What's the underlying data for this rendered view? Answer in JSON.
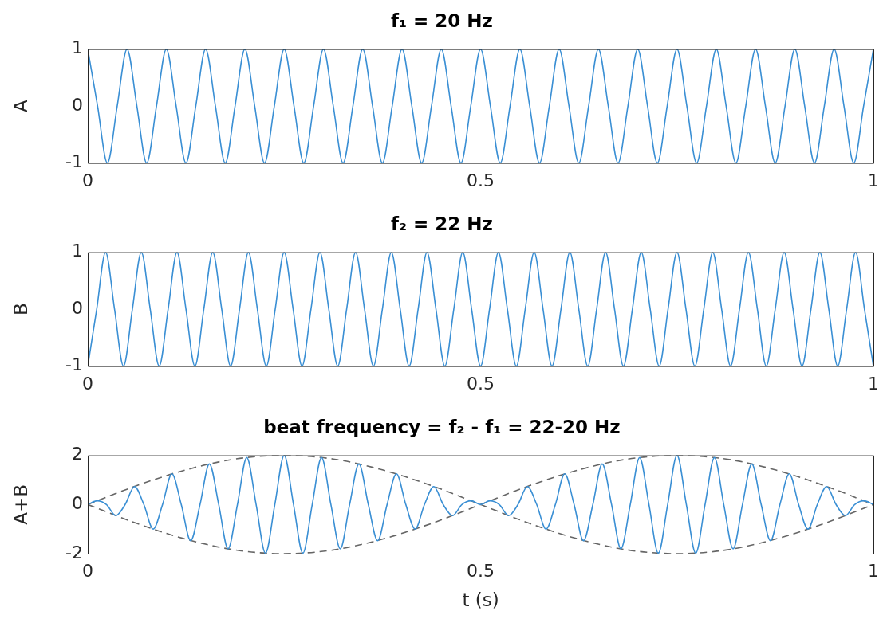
{
  "chart_data": [
    {
      "type": "line",
      "title": "f₁ = 20 Hz",
      "ylabel": "A",
      "xlim": [
        0,
        1
      ],
      "xticks": [
        0,
        0.5,
        1
      ],
      "ylim": [
        -1,
        1
      ],
      "yticks": [
        -1,
        0,
        1
      ],
      "grid": false,
      "line_style": "solid",
      "marker": "none",
      "color": "#3a8fd4",
      "x": [
        0,
        0.0125,
        0.025,
        0.0375,
        0.05,
        0.0625,
        0.075,
        0.0875,
        0.1,
        0.1125,
        0.125,
        0.1375,
        0.15,
        0.1625,
        0.175,
        0.1875,
        0.2,
        0.2125,
        0.225,
        0.2375,
        0.25,
        0.2625,
        0.275,
        0.2875,
        0.3,
        0.3125,
        0.325,
        0.3375,
        0.35,
        0.3625,
        0.375,
        0.3875,
        0.4,
        0.4125,
        0.425,
        0.4375,
        0.45,
        0.4625,
        0.475,
        0.4875,
        0.5,
        0.5125,
        0.525,
        0.5375,
        0.55,
        0.5625,
        0.575,
        0.5875,
        0.6,
        0.6125,
        0.625,
        0.6375,
        0.65,
        0.6625,
        0.675,
        0.6875,
        0.7,
        0.7125,
        0.725,
        0.7375,
        0.75,
        0.7625,
        0.775,
        0.7875,
        0.8,
        0.8125,
        0.825,
        0.8375,
        0.85,
        0.8625,
        0.875,
        0.8875,
        0.9,
        0.9125,
        0.925,
        0.9375,
        0.95,
        0.9625,
        0.975,
        0.9875,
        1
      ],
      "values": [
        1,
        0,
        -1,
        0,
        1,
        0,
        -1,
        0,
        1,
        0,
        -1,
        0,
        1,
        0,
        -1,
        0,
        1,
        0,
        -1,
        0,
        1,
        0,
        -1,
        0,
        1,
        0,
        -1,
        0,
        1,
        0,
        -1,
        0,
        1,
        0,
        -1,
        0,
        1,
        0,
        -1,
        0,
        1,
        0,
        -1,
        0,
        1,
        0,
        -1,
        0,
        1,
        0,
        -1,
        0,
        1,
        0,
        -1,
        0,
        1,
        0,
        -1,
        0,
        1,
        0,
        -1,
        0,
        1,
        0,
        -1,
        0,
        1,
        0,
        -1,
        0,
        1,
        0,
        -1,
        0,
        1,
        0,
        -1,
        0,
        1
      ]
    },
    {
      "type": "line",
      "title": "f₂ = 22 Hz",
      "ylabel": "B",
      "xlim": [
        0,
        1
      ],
      "xticks": [
        0,
        0.5,
        1
      ],
      "ylim": [
        -1,
        1
      ],
      "yticks": [
        -1,
        0,
        1
      ],
      "grid": false,
      "line_style": "solid",
      "marker": "none",
      "color": "#3a8fd4",
      "x": [
        0,
        0.0114,
        0.0227,
        0.0341,
        0.0455,
        0.0568,
        0.0682,
        0.0795,
        0.0909,
        0.1023,
        0.1136,
        0.125,
        0.1364,
        0.1477,
        0.1591,
        0.1705,
        0.1818,
        0.1932,
        0.2045,
        0.2159,
        0.2273,
        0.2386,
        0.25,
        0.2614,
        0.2727,
        0.2841,
        0.2955,
        0.3068,
        0.3182,
        0.3295,
        0.3409,
        0.3523,
        0.3636,
        0.375,
        0.3864,
        0.3977,
        0.4091,
        0.4205,
        0.4318,
        0.4432,
        0.4545,
        0.4659,
        0.4773,
        0.4886,
        0.5,
        0.5114,
        0.5227,
        0.5341,
        0.5455,
        0.5568,
        0.5682,
        0.5795,
        0.5909,
        0.6023,
        0.6136,
        0.625,
        0.6364,
        0.6477,
        0.6591,
        0.6705,
        0.6818,
        0.6932,
        0.7045,
        0.7159,
        0.7273,
        0.7386,
        0.75,
        0.7614,
        0.7727,
        0.7841,
        0.7955,
        0.8068,
        0.8182,
        0.8295,
        0.8409,
        0.8523,
        0.8636,
        0.875,
        0.8864,
        0.8977,
        0.9091,
        0.9205,
        0.9318,
        0.9432,
        0.9545,
        0.9659,
        0.9773,
        0.9886,
        1
      ],
      "values": [
        -1,
        0,
        1,
        0,
        -1,
        0,
        1,
        0,
        -1,
        0,
        1,
        0,
        -1,
        0,
        1,
        0,
        -1,
        0,
        1,
        0,
        -1,
        0,
        1,
        0,
        -1,
        0,
        1,
        0,
        -1,
        0,
        1,
        0,
        -1,
        0,
        1,
        0,
        -1,
        0,
        1,
        0,
        -1,
        0,
        1,
        0,
        -1,
        0,
        1,
        0,
        -1,
        0,
        1,
        0,
        -1,
        0,
        1,
        0,
        -1,
        0,
        1,
        0,
        -1,
        0,
        1,
        0,
        -1,
        0,
        1,
        0,
        -1,
        0,
        1,
        0,
        -1,
        0,
        1,
        0,
        -1,
        0,
        1,
        0,
        -1,
        0,
        1,
        0,
        -1,
        0,
        1,
        0,
        -1
      ]
    },
    {
      "type": "line",
      "title": "beat frequency = f₂ - f₁ = 22-20 Hz",
      "xlabel": "t (s)",
      "ylabel": "A+B",
      "xlim": [
        0,
        1
      ],
      "xticks": [
        0,
        0.5,
        1
      ],
      "ylim": [
        -2,
        2
      ],
      "yticks": [
        -2,
        0,
        2
      ],
      "grid": false,
      "marker": "none",
      "series": [
        {
          "color": "#3a8fd4",
          "line_style": "solid",
          "x": [
            0,
            0.0119,
            0.0238,
            0.0357,
            0.0476,
            0.0595,
            0.0714,
            0.0833,
            0.0952,
            0.1071,
            0.119,
            0.131,
            0.1429,
            0.1548,
            0.1667,
            0.1786,
            0.1905,
            0.2024,
            0.2143,
            0.2262,
            0.2381,
            0.25,
            0.2619,
            0.2738,
            0.2857,
            0.2976,
            0.3095,
            0.3214,
            0.3333,
            0.3452,
            0.3571,
            0.369,
            0.381,
            0.3929,
            0.4048,
            0.4167,
            0.4286,
            0.4405,
            0.4524,
            0.4643,
            0.4762,
            0.4881,
            0.5,
            0.5119,
            0.5238,
            0.5357,
            0.5476,
            0.5595,
            0.5714,
            0.5833,
            0.5952,
            0.6071,
            0.619,
            0.631,
            0.6429,
            0.6548,
            0.6667,
            0.6786,
            0.6905,
            0.7024,
            0.7143,
            0.7262,
            0.7381,
            0.75,
            0.7619,
            0.7738,
            0.7857,
            0.7976,
            0.8095,
            0.8214,
            0.8333,
            0.8452,
            0.8571,
            0.869,
            0.881,
            0.8929,
            0.9048,
            0.9167,
            0.9286,
            0.9405,
            0.9524,
            0.9643,
            0.9762,
            0.9881,
            1
          ],
          "values": [
            0,
            0.15,
            0,
            -0.45,
            0,
            0.73,
            0,
            -1,
            0,
            1.25,
            0,
            -1.47,
            0,
            1.65,
            0,
            -1.8,
            0,
            1.91,
            0,
            -1.98,
            0,
            2,
            0,
            -1.98,
            0,
            1.91,
            0,
            -1.8,
            0,
            1.65,
            0,
            -1.47,
            0,
            1.25,
            0,
            -1,
            0,
            0.73,
            0,
            -0.45,
            0,
            0.15,
            0,
            0.15,
            0,
            -0.45,
            0,
            0.73,
            0,
            -1,
            0,
            1.25,
            0,
            -1.47,
            0,
            1.65,
            0,
            -1.8,
            0,
            1.91,
            0,
            -1.98,
            0,
            2,
            0,
            -1.98,
            0,
            1.91,
            0,
            -1.8,
            0,
            1.65,
            0,
            -1.47,
            0,
            1.25,
            0,
            -1,
            0,
            0.73,
            0,
            -0.45,
            0,
            0.15,
            0
          ]
        },
        {
          "color": "#666666",
          "line_style": "dashed",
          "x": [
            0,
            0.0625,
            0.125,
            0.1875,
            0.25,
            0.3125,
            0.375,
            0.4375,
            0.5,
            0.5625,
            0.625,
            0.6875,
            0.75,
            0.8125,
            0.875,
            0.9375,
            1,
            null,
            0,
            0.0625,
            0.125,
            0.1875,
            0.25,
            0.3125,
            0.375,
            0.4375,
            0.5,
            0.5625,
            0.625,
            0.6875,
            0.75,
            0.8125,
            0.875,
            0.9375,
            1
          ],
          "values": [
            0,
            0.77,
            1.41,
            1.85,
            2,
            1.85,
            1.41,
            0.77,
            0,
            -0.77,
            -1.41,
            -1.85,
            -2,
            -1.85,
            -1.41,
            -0.77,
            0,
            null,
            0,
            -0.77,
            -1.41,
            -1.85,
            -2,
            -1.85,
            -1.41,
            -0.77,
            0,
            0.77,
            1.41,
            1.85,
            2,
            1.85,
            1.41,
            0.77,
            0
          ]
        }
      ]
    }
  ]
}
